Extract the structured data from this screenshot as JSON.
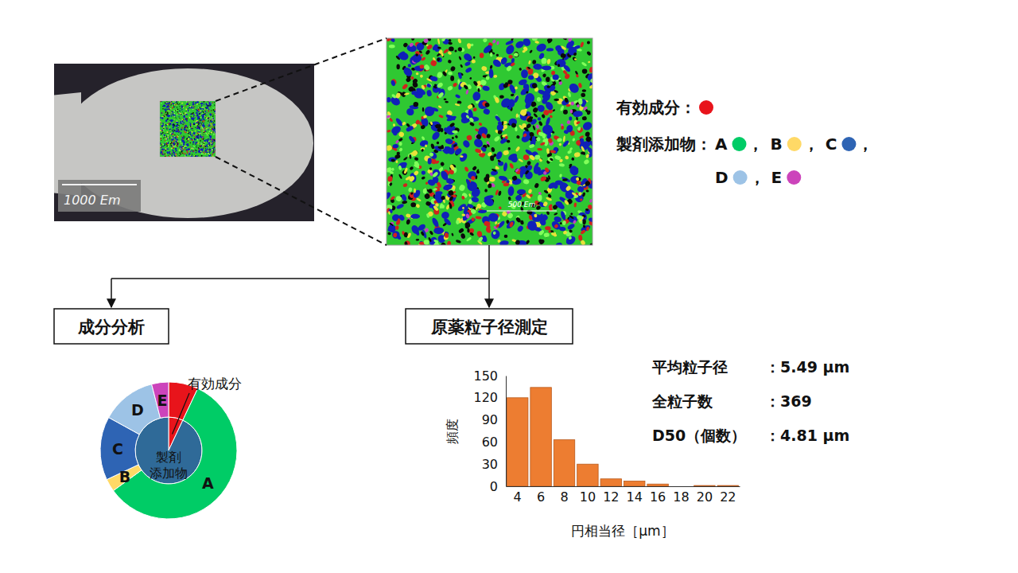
{
  "diagram": {
    "photo_scale_label": "1000 Em",
    "map_scale_label": "500 Em",
    "legend": [
      {
        "title": "有効成分：",
        "items": [
          {
            "color": "#e8141b"
          }
        ]
      },
      {
        "title": "製剤添加物：",
        "items": [
          {
            "label": "A",
            "color": "#00cc66",
            "suffix": "，"
          },
          {
            "label": "B",
            "color": "#ffd966",
            "suffix": "，"
          },
          {
            "label": "C",
            "color": "#2e64b4",
            "suffix": "，"
          },
          {
            "label": "D",
            "color": "#9dc3e6",
            "suffix": "，"
          },
          {
            "label": "E",
            "color": "#cc44bb"
          }
        ]
      }
    ]
  },
  "chart_data": [
    {
      "type": "pie",
      "title": "成分分析",
      "series": [
        {
          "categories": [
            "有効成分",
            "製剤\n添加物"
          ],
          "values": [
            7,
            93
          ],
          "colors": [
            "#e8141b",
            "#2f6a98"
          ]
        },
        {
          "categories": [
            null,
            "A",
            "B",
            "C",
            "D",
            "E"
          ],
          "values": [
            7,
            58,
            3,
            15,
            13,
            4
          ],
          "colors": [
            "#e8141b",
            "#00cc66",
            "#ffd966",
            "#2e64b4",
            "#9dc3e6",
            "#cc44bb"
          ]
        }
      ]
    },
    {
      "type": "bar",
      "title": "原薬粒子径測定",
      "categories": [
        "4",
        "6",
        "8",
        "10",
        "12",
        "14",
        "16",
        "18",
        "20",
        "22"
      ],
      "values": [
        120,
        134,
        63,
        30,
        10,
        7,
        3,
        0,
        1,
        1
      ],
      "color": "#ed7d31",
      "xlabel": "円相当径［μm］",
      "ylabel": "頻度",
      "ylim": [
        0,
        150
      ],
      "yticks": [
        0,
        30,
        60,
        90,
        120,
        150
      ],
      "annotations": [
        {
          "label": "平均粒子径",
          "text": "：5.49 μm"
        },
        {
          "label": "全粒子数",
          "text": "：369"
        },
        {
          "label": "D50（個数）",
          "text": "：4.81 μm"
        }
      ]
    }
  ]
}
